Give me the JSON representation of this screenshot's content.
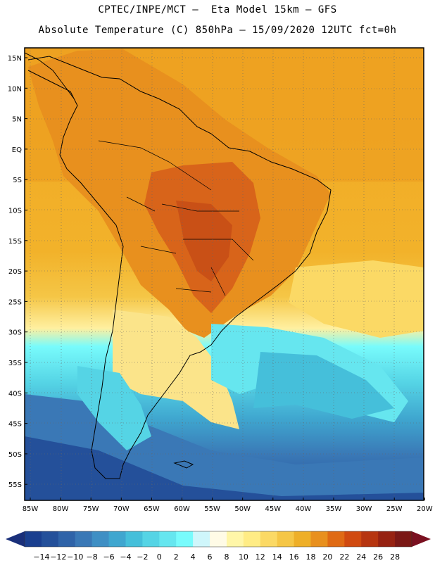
{
  "header": {
    "title_line1": "CPTEC/INPE/MCT –  Eta Model 15km – GFS",
    "title_line2": "Absolute Temperature (C) 850hPa – 15/09/2020 12UTC fct=0h"
  },
  "axes": {
    "lat_labels": [
      "15N",
      "10N",
      "5N",
      "EQ",
      "5S",
      "10S",
      "15S",
      "20S",
      "25S",
      "30S",
      "35S",
      "40S",
      "45S",
      "50S",
      "55S"
    ],
    "lon_labels": [
      "85W",
      "80W",
      "75W",
      "70W",
      "65W",
      "60W",
      "55W",
      "50W",
      "45W",
      "40W",
      "35W",
      "30W",
      "25W",
      "20W"
    ]
  },
  "colorbar": {
    "labels": [
      "-14",
      "-12",
      "-10",
      "-8",
      "-6",
      "-4",
      "-2",
      "0",
      "2",
      "4",
      "6",
      "8",
      "10",
      "12",
      "14",
      "16",
      "18",
      "20",
      "22",
      "24",
      "26",
      "28"
    ],
    "colors": [
      "#1a3f8f",
      "#24509a",
      "#2f63a8",
      "#3a78b6",
      "#3f8fc4",
      "#3fa6cf",
      "#45bfda",
      "#55d4e5",
      "#66e6ef",
      "#78fbfc",
      "#cff6fb",
      "#fffbe6",
      "#fff6a8",
      "#ffec85",
      "#fbd965",
      "#f5c646",
      "#eeaf28",
      "#e8901e",
      "#df6a14",
      "#d04a10",
      "#b63510",
      "#962212",
      "#7a1816"
    ],
    "low_arrow_color": "#1a2f7a",
    "high_arrow_color": "#7a1020"
  },
  "map_colors": {
    "ocean_n": "#f0b020",
    "land_warm": "#e8901e",
    "land_hot": "#d8641a",
    "south_cold": "#3f8fc4",
    "deep_cold": "#24509a",
    "coast": "#000000",
    "grid": "#666666"
  }
}
